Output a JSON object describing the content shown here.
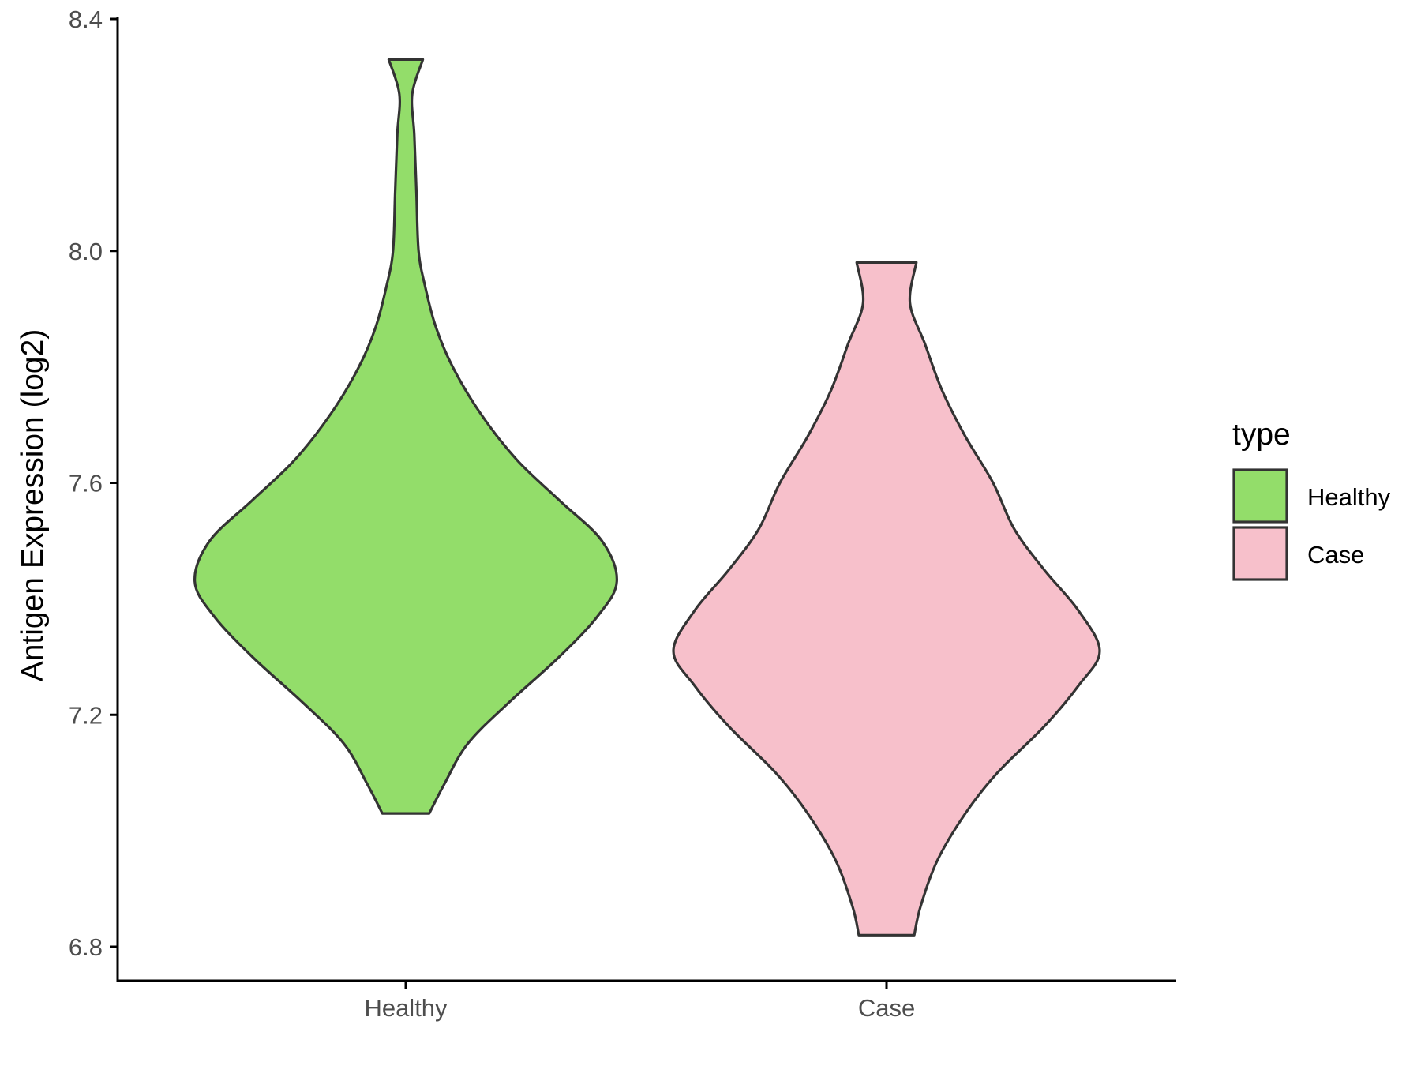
{
  "chart_data": {
    "type": "violin",
    "ylabel": "Antigen Expression (log2)",
    "xlabel": "",
    "ylim": [
      6.74,
      8.4
    ],
    "yticks": [
      "6.8",
      "7.2",
      "7.6",
      "8.0",
      "8.4"
    ],
    "categories": [
      "Healthy",
      "Case"
    ],
    "grid": false,
    "legend": {
      "title": "type",
      "placement": "right",
      "entries": [
        "Healthy",
        "Case"
      ]
    },
    "series": [
      {
        "name": "Healthy",
        "color": "#93DD6A",
        "min": 7.03,
        "max": 8.33,
        "density_profile": [
          [
            7.03,
            0.11
          ],
          [
            7.08,
            0.18
          ],
          [
            7.15,
            0.29
          ],
          [
            7.22,
            0.48
          ],
          [
            7.3,
            0.72
          ],
          [
            7.37,
            0.9
          ],
          [
            7.43,
            0.99
          ],
          [
            7.5,
            0.92
          ],
          [
            7.57,
            0.72
          ],
          [
            7.64,
            0.52
          ],
          [
            7.72,
            0.35
          ],
          [
            7.8,
            0.22
          ],
          [
            7.87,
            0.14
          ],
          [
            7.94,
            0.09
          ],
          [
            8.0,
            0.06
          ],
          [
            8.1,
            0.05
          ],
          [
            8.2,
            0.04
          ],
          [
            8.27,
            0.03
          ],
          [
            8.33,
            0.08
          ]
        ]
      },
      {
        "name": "Case",
        "color": "#F7C0CB",
        "min": 6.82,
        "max": 7.98,
        "density_profile": [
          [
            6.82,
            0.13
          ],
          [
            6.87,
            0.16
          ],
          [
            6.95,
            0.24
          ],
          [
            7.03,
            0.37
          ],
          [
            7.1,
            0.52
          ],
          [
            7.18,
            0.74
          ],
          [
            7.25,
            0.9
          ],
          [
            7.31,
            1.0
          ],
          [
            7.38,
            0.9
          ],
          [
            7.45,
            0.74
          ],
          [
            7.52,
            0.6
          ],
          [
            7.6,
            0.5
          ],
          [
            7.68,
            0.37
          ],
          [
            7.76,
            0.26
          ],
          [
            7.84,
            0.18
          ],
          [
            7.91,
            0.11
          ],
          [
            7.98,
            0.14
          ]
        ]
      }
    ]
  }
}
